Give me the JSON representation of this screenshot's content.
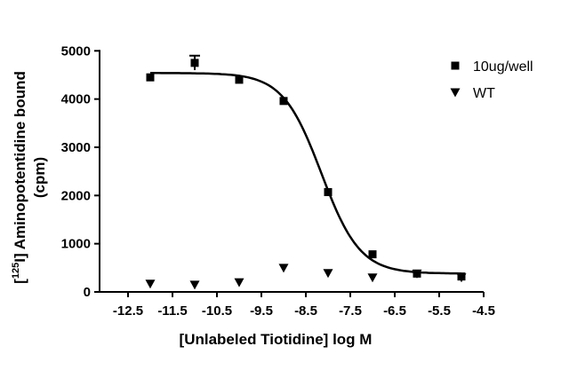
{
  "chart_data": {
    "type": "scatter",
    "xlabel": "[Unlabeled Tiotidine] log M",
    "ylabel_parts": {
      "pre": "[",
      "sup": "125",
      "post": "I] Aminopotentidine bound",
      "unit": "(cpm)"
    },
    "xlim": [
      -12.5,
      -4.5
    ],
    "ylim": [
      0,
      5000
    ],
    "x_ticks": [
      -12.5,
      -11.5,
      -10.5,
      -9.5,
      -8.5,
      -7.5,
      -6.5,
      -5.5,
      -4.5
    ],
    "x_tick_labels": [
      "-12.5",
      "-11.5",
      "-10.5",
      "-9.5",
      "-8.5",
      "-7.5",
      "-6.5",
      "-5.5",
      "-4.5"
    ],
    "y_ticks": [
      0,
      1000,
      2000,
      3000,
      4000,
      5000
    ],
    "y_tick_labels": [
      "0",
      "1000",
      "2000",
      "3000",
      "4000",
      "5000"
    ],
    "legend_position": "top-right",
    "series": [
      {
        "name": "10ug/well",
        "marker": "square",
        "x": [
          -12,
          -11,
          -10,
          -9,
          -8,
          -7,
          -6,
          -5
        ],
        "y": [
          4450,
          4750,
          4400,
          3960,
          2070,
          780,
          380,
          320
        ],
        "error": [
          0,
          150,
          0,
          0,
          0,
          0,
          0,
          0
        ],
        "fit": {
          "top": 4540,
          "bottom": 380,
          "log_ic50": -8.15,
          "hill": -1
        }
      },
      {
        "name": "WT",
        "marker": "triangle-down",
        "x": [
          -12,
          -11,
          -10,
          -9,
          -8,
          -7,
          -6,
          -5
        ],
        "y": [
          170,
          150,
          200,
          500,
          390,
          300,
          380,
          300
        ]
      }
    ]
  }
}
